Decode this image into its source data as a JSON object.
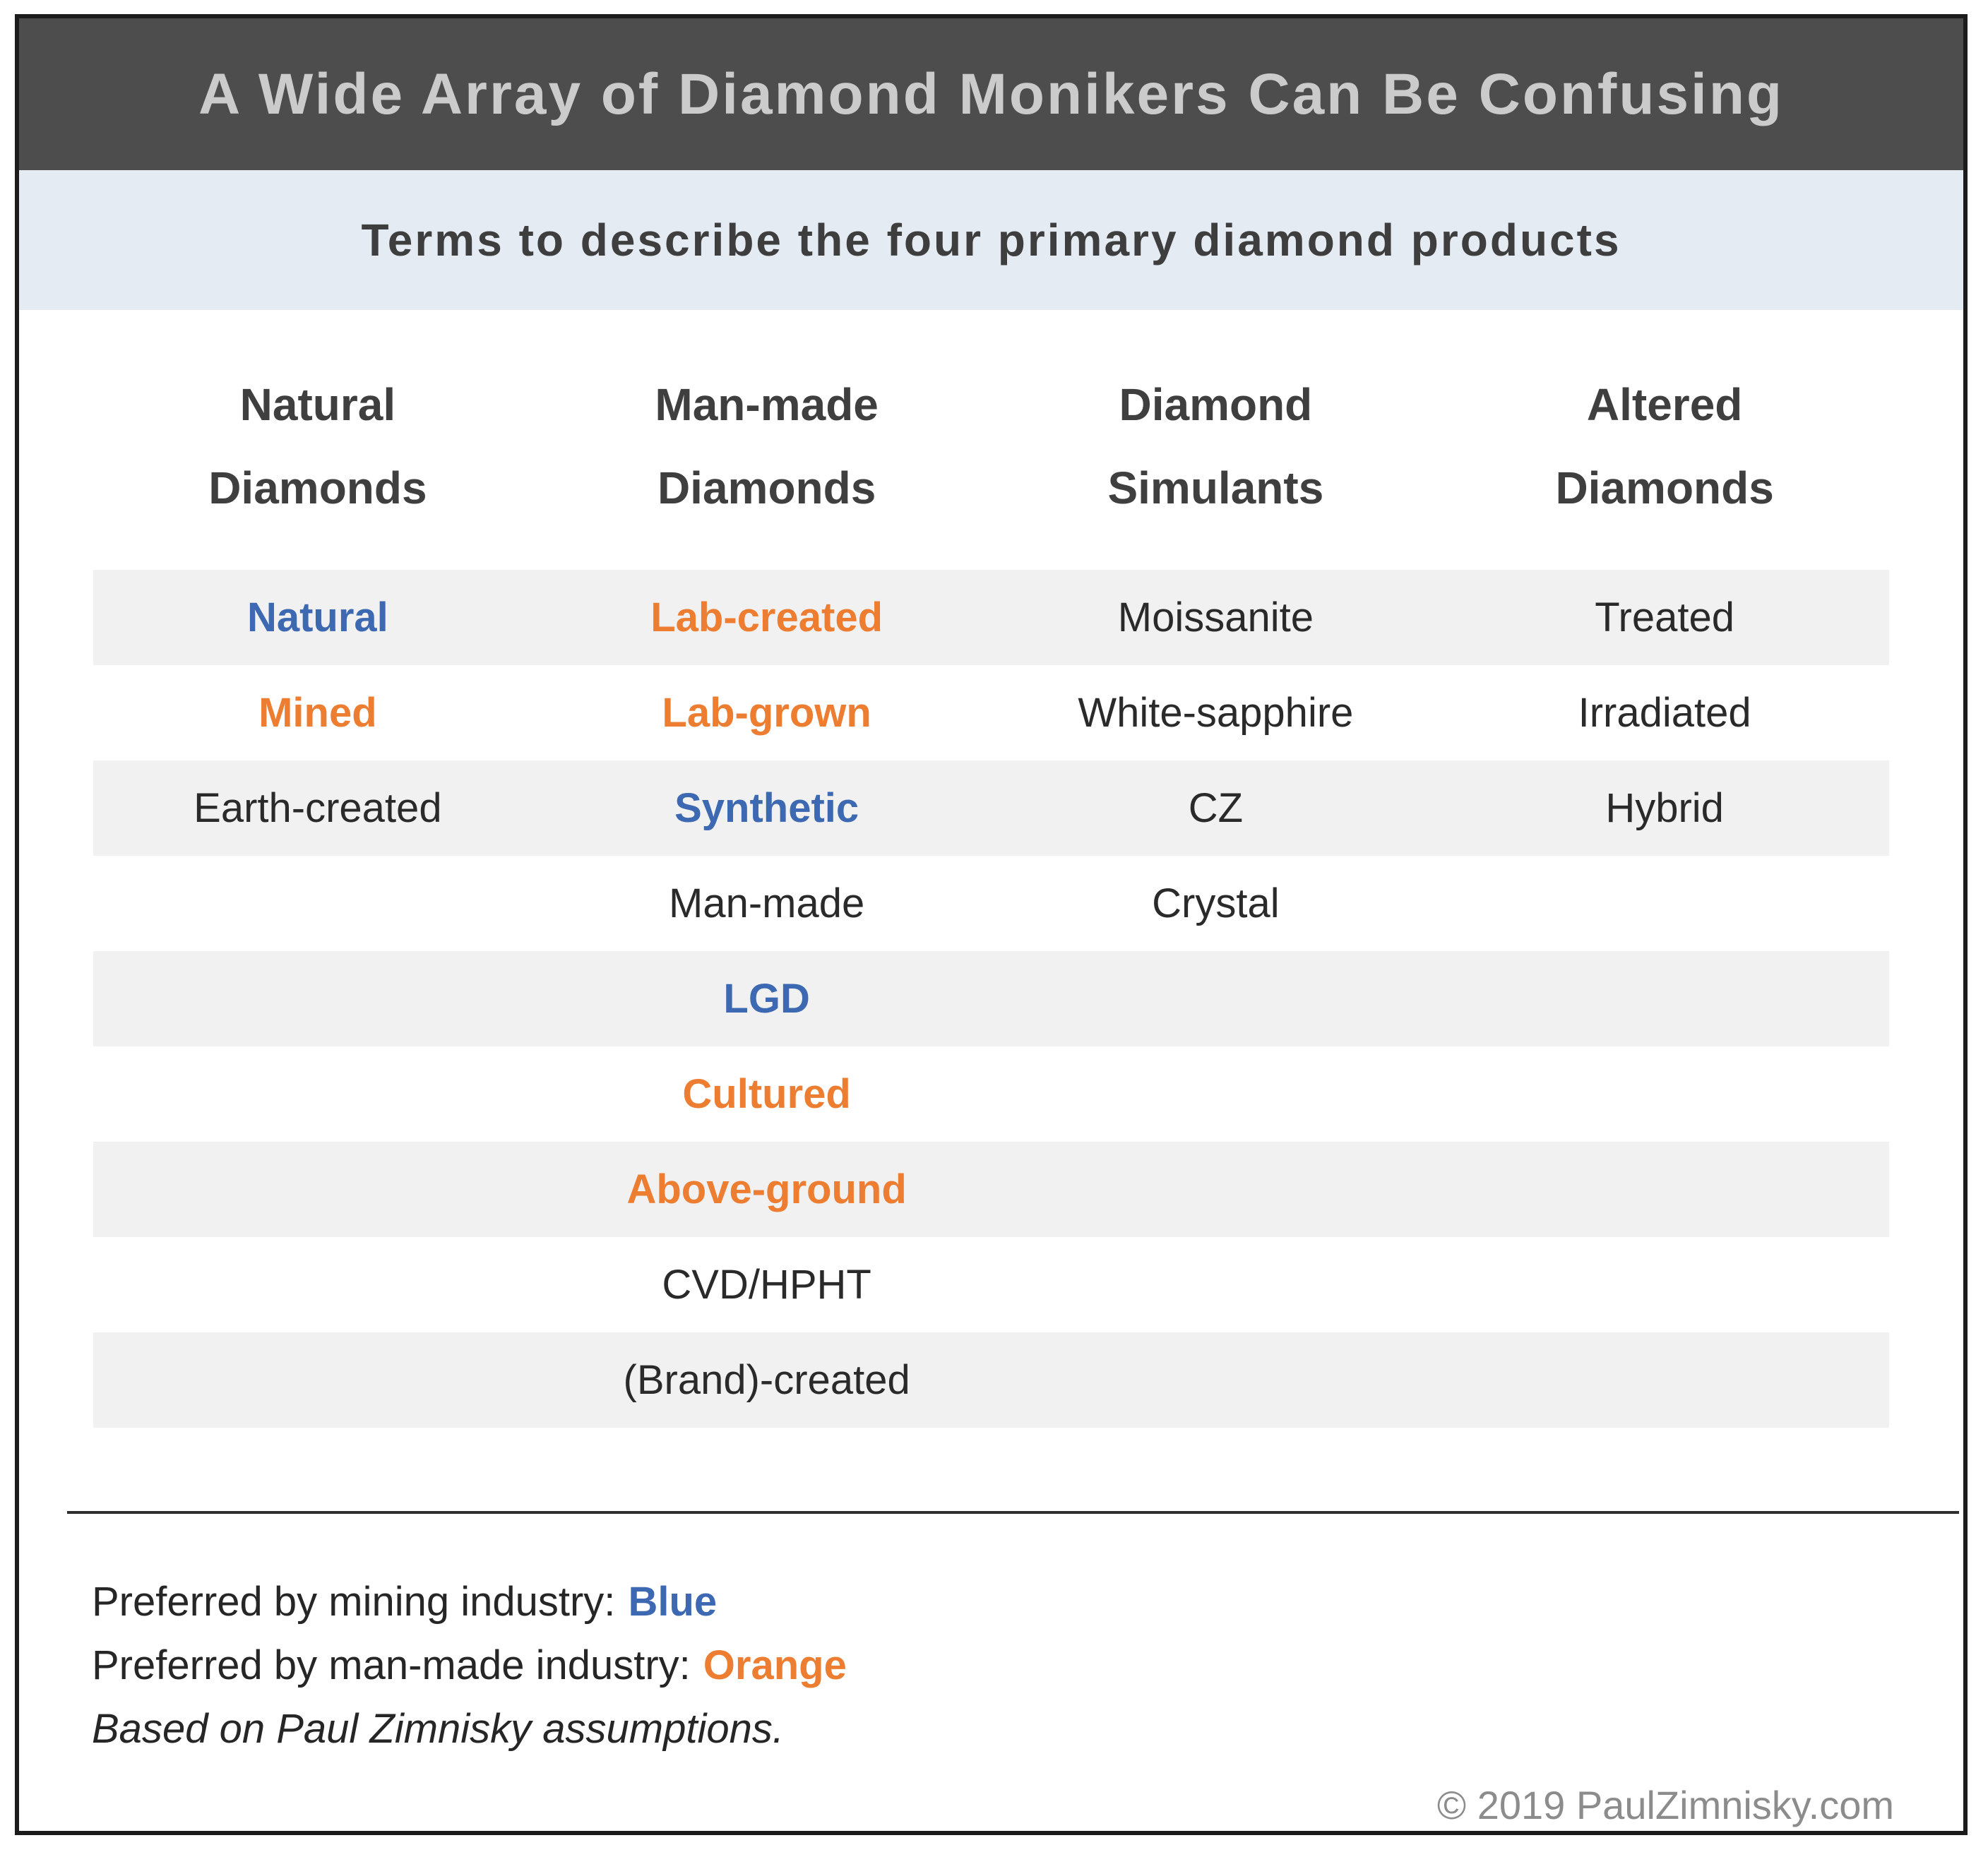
{
  "title": "A Wide Array of Diamond Monikers Can Be Confusing",
  "subtitle": "Terms to describe the four primary diamond products",
  "columns": [
    {
      "line1": "Natural",
      "line2": "Diamonds"
    },
    {
      "line1": "Man-made",
      "line2": "Diamonds"
    },
    {
      "line1": "Diamond",
      "line2": "Simulants"
    },
    {
      "line1": "Altered",
      "line2": "Diamonds"
    }
  ],
  "rows": [
    [
      {
        "text": "Natural",
        "pref": "mining"
      },
      {
        "text": "Lab-created",
        "pref": "manmade"
      },
      {
        "text": "Moissanite",
        "pref": "none"
      },
      {
        "text": "Treated",
        "pref": "none"
      }
    ],
    [
      {
        "text": "Mined",
        "pref": "manmade"
      },
      {
        "text": "Lab-grown",
        "pref": "manmade"
      },
      {
        "text": "White-sapphire",
        "pref": "none"
      },
      {
        "text": "Irradiated",
        "pref": "none"
      }
    ],
    [
      {
        "text": "Earth-created",
        "pref": "none"
      },
      {
        "text": "Synthetic",
        "pref": "mining"
      },
      {
        "text": "CZ",
        "pref": "none"
      },
      {
        "text": "Hybrid",
        "pref": "none"
      }
    ],
    [
      {
        "text": "",
        "pref": "none"
      },
      {
        "text": "Man-made",
        "pref": "none"
      },
      {
        "text": "Crystal",
        "pref": "none"
      },
      {
        "text": "",
        "pref": "none"
      }
    ],
    [
      {
        "text": "",
        "pref": "none"
      },
      {
        "text": "LGD",
        "pref": "mining"
      },
      {
        "text": "",
        "pref": "none"
      },
      {
        "text": "",
        "pref": "none"
      }
    ],
    [
      {
        "text": "",
        "pref": "none"
      },
      {
        "text": "Cultured",
        "pref": "manmade"
      },
      {
        "text": "",
        "pref": "none"
      },
      {
        "text": "",
        "pref": "none"
      }
    ],
    [
      {
        "text": "",
        "pref": "none"
      },
      {
        "text": "Above-ground",
        "pref": "manmade"
      },
      {
        "text": "",
        "pref": "none"
      },
      {
        "text": "",
        "pref": "none"
      }
    ],
    [
      {
        "text": "",
        "pref": "none"
      },
      {
        "text": "CVD/HPHT",
        "pref": "none"
      },
      {
        "text": "",
        "pref": "none"
      },
      {
        "text": "",
        "pref": "none"
      }
    ],
    [
      {
        "text": "",
        "pref": "none"
      },
      {
        "text": "(Brand)-created",
        "pref": "none"
      },
      {
        "text": "",
        "pref": "none"
      },
      {
        "text": "",
        "pref": "none"
      }
    ]
  ],
  "footer": {
    "legend": [
      {
        "label": "Preferred by mining industry:",
        "value": "Blue",
        "pref": "mining"
      },
      {
        "label": "Preferred by man-made industry:",
        "value": "Orange",
        "pref": "manmade"
      }
    ],
    "note": "Based on Paul Zimnisky assumptions.",
    "copyright": "© 2019 PaulZimnisky.com"
  },
  "colors": {
    "mining_blue": "#3D68B2",
    "manmade_orange": "#ED7D31",
    "title_bar_bg": "#4D4D4D",
    "title_text": "#CBCBCB",
    "subtitle_bar_bg": "#E4EBF3",
    "row_stripe": "#F1F1F1",
    "frame_border": "#1c1c1c",
    "copyright_gray": "#8C8C8C"
  },
  "chart_data": {
    "type": "table",
    "title": "A Wide Array of Diamond Monikers Can Be Confusing",
    "subtitle": "Terms to describe the four primary diamond products",
    "columns": [
      "Natural Diamonds",
      "Man-made Diamonds",
      "Diamond Simulants",
      "Altered Diamonds"
    ],
    "rows": [
      [
        "Natural",
        "Lab-created",
        "Moissanite",
        "Treated"
      ],
      [
        "Mined",
        "Lab-grown",
        "White-sapphire",
        "Irradiated"
      ],
      [
        "Earth-created",
        "Synthetic",
        "CZ",
        "Hybrid"
      ],
      [
        "",
        "Man-made",
        "Crystal",
        ""
      ],
      [
        "",
        "LGD",
        "",
        ""
      ],
      [
        "",
        "Cultured",
        "",
        ""
      ],
      [
        "",
        "Above-ground",
        "",
        ""
      ],
      [
        "",
        "CVD/HPHT",
        "",
        ""
      ],
      [
        "",
        "(Brand)-created",
        "",
        ""
      ]
    ],
    "highlighting": {
      "blue_terms_preferred_by_mining_industry": [
        "Natural",
        "Synthetic",
        "LGD"
      ],
      "orange_terms_preferred_by_manmade_industry": [
        "Mined",
        "Lab-created",
        "Lab-grown",
        "Cultured",
        "Above-ground"
      ]
    },
    "annotations": [
      "Preferred by mining industry: Blue",
      "Preferred by man-made industry: Orange",
      "Based on Paul Zimnisky assumptions.",
      "© 2019 PaulZimnisky.com"
    ]
  }
}
